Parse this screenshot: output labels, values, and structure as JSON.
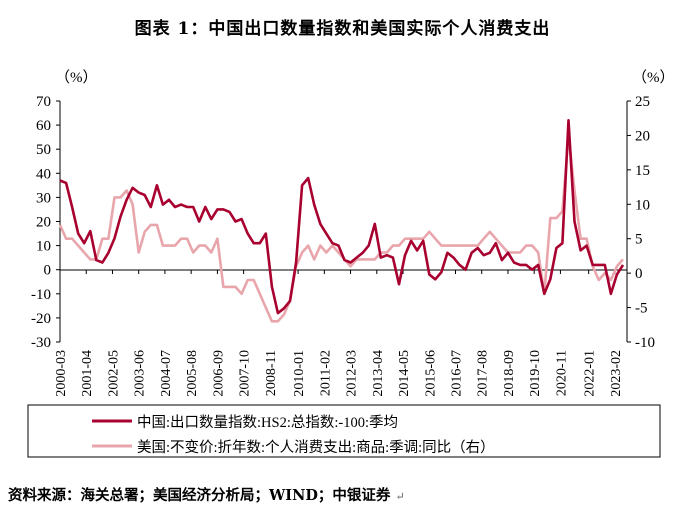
{
  "title": "图表 1：中国出口数量指数和美国实际个人消费支出",
  "source": "资料来源：海关总署；美国经济分析局；WIND；中银证券",
  "colors": {
    "china": "#a8002f",
    "us": "#e8a6ac",
    "axis": "#000000"
  },
  "chart_data": {
    "type": "line",
    "left_axis": {
      "unit": "（%）",
      "range": [
        -30,
        70
      ],
      "ticks": [
        -30,
        -20,
        -10,
        0,
        10,
        20,
        30,
        40,
        50,
        60,
        70
      ]
    },
    "right_axis": {
      "unit": "（%）",
      "range": [
        -10,
        25
      ],
      "ticks": [
        -10,
        -5,
        0,
        5,
        10,
        15,
        20,
        25
      ]
    },
    "x_ticks": [
      "2000-03",
      "2001-04",
      "2002-05",
      "2003-06",
      "2004-07",
      "2005-08",
      "2006-09",
      "2007-10",
      "2008-11",
      "2010-01",
      "2011-02",
      "2012-03",
      "2013-04",
      "2014-05",
      "2015-06",
      "2016-07",
      "2017-08",
      "2018-09",
      "2019-10",
      "2020-11",
      "2022-01",
      "2023-02"
    ],
    "legend": "bottom",
    "grid": false,
    "series": [
      {
        "name": "中国:出口数量指数:HS2:总指数:-100:季均",
        "axis": "left",
        "points": [
          [
            "2000-03",
            37
          ],
          [
            "2000-06",
            36
          ],
          [
            "2000-09",
            26
          ],
          [
            "2000-12",
            15
          ],
          [
            "2001-03",
            11
          ],
          [
            "2001-06",
            16
          ],
          [
            "2001-09",
            4
          ],
          [
            "2001-12",
            3
          ],
          [
            "2002-03",
            7
          ],
          [
            "2002-06",
            13
          ],
          [
            "2002-09",
            22
          ],
          [
            "2002-12",
            29
          ],
          [
            "2003-03",
            34
          ],
          [
            "2003-06",
            32
          ],
          [
            "2003-09",
            31
          ],
          [
            "2003-12",
            26
          ],
          [
            "2004-03",
            35
          ],
          [
            "2004-06",
            27
          ],
          [
            "2004-09",
            29
          ],
          [
            "2004-12",
            26
          ],
          [
            "2005-03",
            27
          ],
          [
            "2005-06",
            26
          ],
          [
            "2005-09",
            26
          ],
          [
            "2005-12",
            20
          ],
          [
            "2006-03",
            26
          ],
          [
            "2006-06",
            21
          ],
          [
            "2006-09",
            25
          ],
          [
            "2006-12",
            25
          ],
          [
            "2007-03",
            24
          ],
          [
            "2007-06",
            20
          ],
          [
            "2007-09",
            21
          ],
          [
            "2007-12",
            15
          ],
          [
            "2008-03",
            11
          ],
          [
            "2008-06",
            11
          ],
          [
            "2008-09",
            15
          ],
          [
            "2008-12",
            -7
          ],
          [
            "2009-03",
            -18
          ],
          [
            "2009-06",
            -16
          ],
          [
            "2009-09",
            -13
          ],
          [
            "2009-12",
            3
          ],
          [
            "2010-03",
            35
          ],
          [
            "2010-06",
            38
          ],
          [
            "2010-09",
            27
          ],
          [
            "2010-12",
            19
          ],
          [
            "2011-03",
            15
          ],
          [
            "2011-06",
            11
          ],
          [
            "2011-09",
            10
          ],
          [
            "2011-12",
            4
          ],
          [
            "2012-03",
            3
          ],
          [
            "2012-06",
            5
          ],
          [
            "2012-09",
            7
          ],
          [
            "2012-12",
            10
          ],
          [
            "2013-03",
            19
          ],
          [
            "2013-06",
            5
          ],
          [
            "2013-09",
            6
          ],
          [
            "2013-12",
            5
          ],
          [
            "2014-03",
            -6
          ],
          [
            "2014-06",
            6
          ],
          [
            "2014-09",
            12
          ],
          [
            "2014-12",
            8
          ],
          [
            "2015-03",
            12
          ],
          [
            "2015-06",
            -2
          ],
          [
            "2015-09",
            -4
          ],
          [
            "2015-12",
            -1
          ],
          [
            "2016-03",
            7
          ],
          [
            "2016-06",
            5
          ],
          [
            "2016-09",
            2
          ],
          [
            "2016-12",
            0
          ],
          [
            "2017-03",
            7
          ],
          [
            "2017-06",
            9
          ],
          [
            "2017-09",
            6
          ],
          [
            "2017-12",
            7
          ],
          [
            "2018-03",
            11
          ],
          [
            "2018-06",
            4
          ],
          [
            "2018-09",
            7
          ],
          [
            "2018-12",
            3
          ],
          [
            "2019-03",
            2
          ],
          [
            "2019-06",
            2
          ],
          [
            "2019-09",
            0
          ],
          [
            "2019-12",
            2
          ],
          [
            "2020-03",
            -10
          ],
          [
            "2020-06",
            -4
          ],
          [
            "2020-09",
            9
          ],
          [
            "2020-12",
            11
          ],
          [
            "2021-03",
            62
          ],
          [
            "2021-06",
            20
          ],
          [
            "2021-09",
            8
          ],
          [
            "2021-12",
            10
          ],
          [
            "2022-03",
            2
          ],
          [
            "2022-06",
            2
          ],
          [
            "2022-09",
            2
          ],
          [
            "2022-12",
            -10
          ],
          [
            "2023-03",
            -2
          ],
          [
            "2023-06",
            2
          ]
        ]
      },
      {
        "name": "美国:不变价:折年数:个人消费支出:商品:季调:同比（右）",
        "axis": "right",
        "points": [
          [
            "2000-03",
            7
          ],
          [
            "2000-06",
            5
          ],
          [
            "2000-09",
            5
          ],
          [
            "2000-12",
            4
          ],
          [
            "2001-03",
            3
          ],
          [
            "2001-06",
            2
          ],
          [
            "2001-09",
            2
          ],
          [
            "2001-12",
            5
          ],
          [
            "2002-03",
            5
          ],
          [
            "2002-06",
            11
          ],
          [
            "2002-09",
            11
          ],
          [
            "2002-12",
            12
          ],
          [
            "2003-03",
            10
          ],
          [
            "2003-06",
            3
          ],
          [
            "2003-09",
            6
          ],
          [
            "2003-12",
            7
          ],
          [
            "2004-03",
            7
          ],
          [
            "2004-06",
            4
          ],
          [
            "2004-09",
            4
          ],
          [
            "2004-12",
            4
          ],
          [
            "2005-03",
            5
          ],
          [
            "2005-06",
            5
          ],
          [
            "2005-09",
            3
          ],
          [
            "2005-12",
            4
          ],
          [
            "2006-03",
            4
          ],
          [
            "2006-06",
            3
          ],
          [
            "2006-09",
            5
          ],
          [
            "2006-12",
            -2
          ],
          [
            "2007-03",
            -2
          ],
          [
            "2007-06",
            -2
          ],
          [
            "2007-09",
            -3
          ],
          [
            "2007-12",
            -1
          ],
          [
            "2008-03",
            -1
          ],
          [
            "2008-06",
            -3
          ],
          [
            "2008-09",
            -5
          ],
          [
            "2008-12",
            -7
          ],
          [
            "2009-03",
            -7
          ],
          [
            "2009-06",
            -6
          ],
          [
            "2009-09",
            -4
          ],
          [
            "2009-12",
            1
          ],
          [
            "2010-03",
            3
          ],
          [
            "2010-06",
            4
          ],
          [
            "2010-09",
            2
          ],
          [
            "2010-12",
            4
          ],
          [
            "2011-03",
            3
          ],
          [
            "2011-06",
            4
          ],
          [
            "2011-09",
            3
          ],
          [
            "2011-12",
            2
          ],
          [
            "2012-03",
            1
          ],
          [
            "2012-06",
            2
          ],
          [
            "2012-09",
            2
          ],
          [
            "2012-12",
            2
          ],
          [
            "2013-03",
            2
          ],
          [
            "2013-06",
            3
          ],
          [
            "2013-09",
            3
          ],
          [
            "2013-12",
            4
          ],
          [
            "2014-03",
            4
          ],
          [
            "2014-06",
            5
          ],
          [
            "2014-09",
            5
          ],
          [
            "2014-12",
            5
          ],
          [
            "2015-03",
            5
          ],
          [
            "2015-06",
            6
          ],
          [
            "2015-09",
            5
          ],
          [
            "2015-12",
            4
          ],
          [
            "2016-03",
            4
          ],
          [
            "2016-06",
            4
          ],
          [
            "2016-09",
            4
          ],
          [
            "2016-12",
            4
          ],
          [
            "2017-03",
            4
          ],
          [
            "2017-06",
            4
          ],
          [
            "2017-09",
            5
          ],
          [
            "2017-12",
            6
          ],
          [
            "2018-03",
            5
          ],
          [
            "2018-06",
            4
          ],
          [
            "2018-09",
            3
          ],
          [
            "2018-12",
            3
          ],
          [
            "2019-03",
            3
          ],
          [
            "2019-06",
            4
          ],
          [
            "2019-09",
            4
          ],
          [
            "2019-12",
            3
          ],
          [
            "2020-03",
            -3
          ],
          [
            "2020-06",
            8
          ],
          [
            "2020-09",
            8
          ],
          [
            "2020-12",
            9
          ],
          [
            "2021-03",
            20
          ],
          [
            "2021-06",
            12
          ],
          [
            "2021-09",
            5
          ],
          [
            "2021-12",
            5
          ],
          [
            "2022-03",
            1
          ],
          [
            "2022-06",
            -1
          ],
          [
            "2022-09",
            0
          ],
          [
            "2022-12",
            -1
          ],
          [
            "2023-03",
            1
          ],
          [
            "2023-06",
            2
          ]
        ]
      }
    ]
  }
}
